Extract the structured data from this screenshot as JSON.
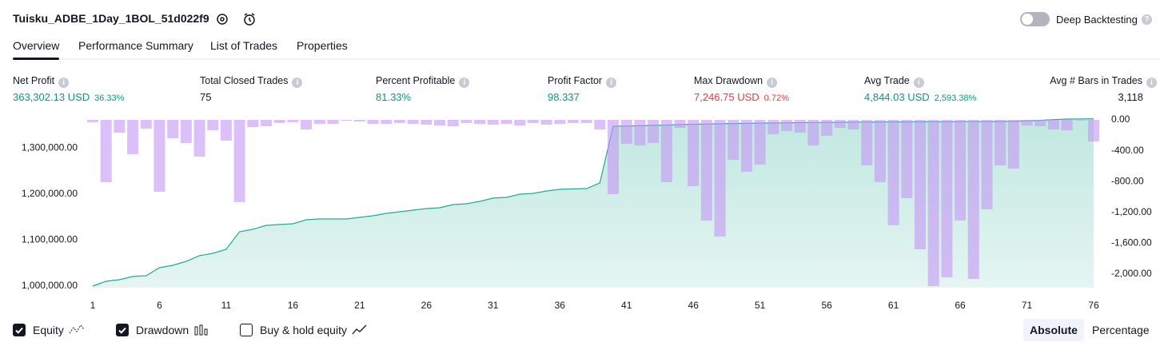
{
  "header": {
    "title": "Tuisku_ADBE_1Day_1BOL_51d022f9",
    "toggle_label": "Deep Backtesting",
    "toggle_on": false
  },
  "tabs": [
    "Overview",
    "Performance Summary",
    "List of Trades",
    "Properties"
  ],
  "active_tab": 0,
  "stats": [
    {
      "label": "Net Profit",
      "value": "363,302.13 USD",
      "percent": "36.33%",
      "color": "#089981"
    },
    {
      "label": "Total Closed Trades",
      "value": "75",
      "color": "#131722"
    },
    {
      "label": "Percent Profitable",
      "value": "81.33%",
      "color": "#089981"
    },
    {
      "label": "Profit Factor",
      "value": "98.337",
      "color": "#089981"
    },
    {
      "label": "Max Drawdown",
      "value": "7,246.75 USD",
      "percent": "0.72%",
      "color": "#f23645"
    },
    {
      "label": "Avg Trade",
      "value": "4,844.03 USD",
      "percent": "2,593.38%",
      "color": "#089981"
    },
    {
      "label": "Avg # Bars in Trades",
      "value": "3,118",
      "color": "#131722"
    }
  ],
  "chart_data": {
    "type": "combo",
    "x": [
      1,
      2,
      3,
      4,
      5,
      6,
      7,
      8,
      9,
      10,
      11,
      12,
      13,
      14,
      15,
      16,
      17,
      18,
      19,
      20,
      21,
      22,
      23,
      24,
      25,
      26,
      27,
      28,
      29,
      30,
      31,
      32,
      33,
      34,
      35,
      36,
      37,
      38,
      39,
      40,
      41,
      42,
      43,
      44,
      45,
      46,
      47,
      48,
      49,
      50,
      51,
      52,
      53,
      54,
      55,
      56,
      57,
      58,
      59,
      60,
      61,
      62,
      63,
      64,
      65,
      66,
      67,
      68,
      69,
      70,
      71,
      72,
      73,
      74,
      75,
      76
    ],
    "xlim": [
      1,
      76
    ],
    "xticks": [
      1,
      6,
      11,
      16,
      21,
      26,
      31,
      36,
      41,
      46,
      51,
      56,
      61,
      66,
      71,
      76
    ],
    "ylim": [
      996500,
      1361000
    ],
    "yticks": [
      {
        "value": 1000000,
        "label": "1,000,000.00"
      },
      {
        "value": 1100000,
        "label": "1,100,000.00"
      },
      {
        "value": 1200000,
        "label": "1,200,000.00"
      },
      {
        "value": 1300000,
        "label": "1,300,000.00"
      }
    ],
    "y2lim": [
      -2176,
      0
    ],
    "y2ticks": [
      {
        "value": 0,
        "label": "0.00"
      },
      {
        "value": -400,
        "label": "-400.00"
      },
      {
        "value": -800,
        "label": "-800.00"
      },
      {
        "value": -1200,
        "label": "-1,200.00"
      },
      {
        "value": -1600,
        "label": "-1,600.00"
      },
      {
        "value": -2000,
        "label": "-2,000.00"
      }
    ],
    "series": [
      {
        "name": "Equity",
        "type": "area",
        "visible": true,
        "color": "#22ab94",
        "values": [
          1000000,
          1010400,
          1013900,
          1020800,
          1022600,
          1039900,
          1045100,
          1053800,
          1066000,
          1071200,
          1079900,
          1118000,
          1123300,
          1131900,
          1133700,
          1135400,
          1144100,
          1145800,
          1145800,
          1145800,
          1149300,
          1152800,
          1158000,
          1161400,
          1164900,
          1168400,
          1170100,
          1177100,
          1178800,
          1184000,
          1191000,
          1192700,
          1199600,
          1201400,
          1206600,
          1210100,
          1211000,
          1211800,
          1224000,
          1347200,
          1347700,
          1348200,
          1349000,
          1349500,
          1351000,
          1351500,
          1352000,
          1352500,
          1353000,
          1353500,
          1353800,
          1354200,
          1354500,
          1354900,
          1355200,
          1355500,
          1355800,
          1356100,
          1356300,
          1356500,
          1356600,
          1356700,
          1356800,
          1356900,
          1357000,
          1357100,
          1357200,
          1357300,
          1357500,
          1358000,
          1359000,
          1360000,
          1361500,
          1362800,
          1363100,
          1363302
        ]
      },
      {
        "name": "Drawdown",
        "type": "bar",
        "axis": "y2",
        "visible": true,
        "color": "#c596f5",
        "values": [
          -30,
          -808,
          -166,
          -445,
          -114,
          -932,
          -238,
          -300,
          -477,
          -135,
          -269,
          -1067,
          -93,
          -83,
          -41,
          -31,
          -124,
          -52,
          -52,
          -10,
          -21,
          -52,
          -52,
          -41,
          -52,
          -62,
          -73,
          -83,
          -41,
          -52,
          -62,
          -52,
          -73,
          -41,
          -62,
          -52,
          -41,
          -41,
          -124,
          -963,
          -311,
          -332,
          -300,
          -808,
          -104,
          -860,
          -1305,
          -1513,
          -518,
          -673,
          -580,
          -186,
          -145,
          -166,
          -332,
          -207,
          -104,
          -124,
          -590,
          -808,
          -1367,
          -1015,
          -1678,
          -2155,
          -2041,
          -1305,
          -2062,
          -1160,
          -590,
          -632,
          -73,
          -83,
          -124,
          -135,
          -10,
          -280
        ]
      }
    ],
    "extra_legend": {
      "name": "Buy & hold equity",
      "visible": false
    },
    "scale_modes": [
      "Absolute",
      "Percentage"
    ],
    "selected_scale": 0
  }
}
